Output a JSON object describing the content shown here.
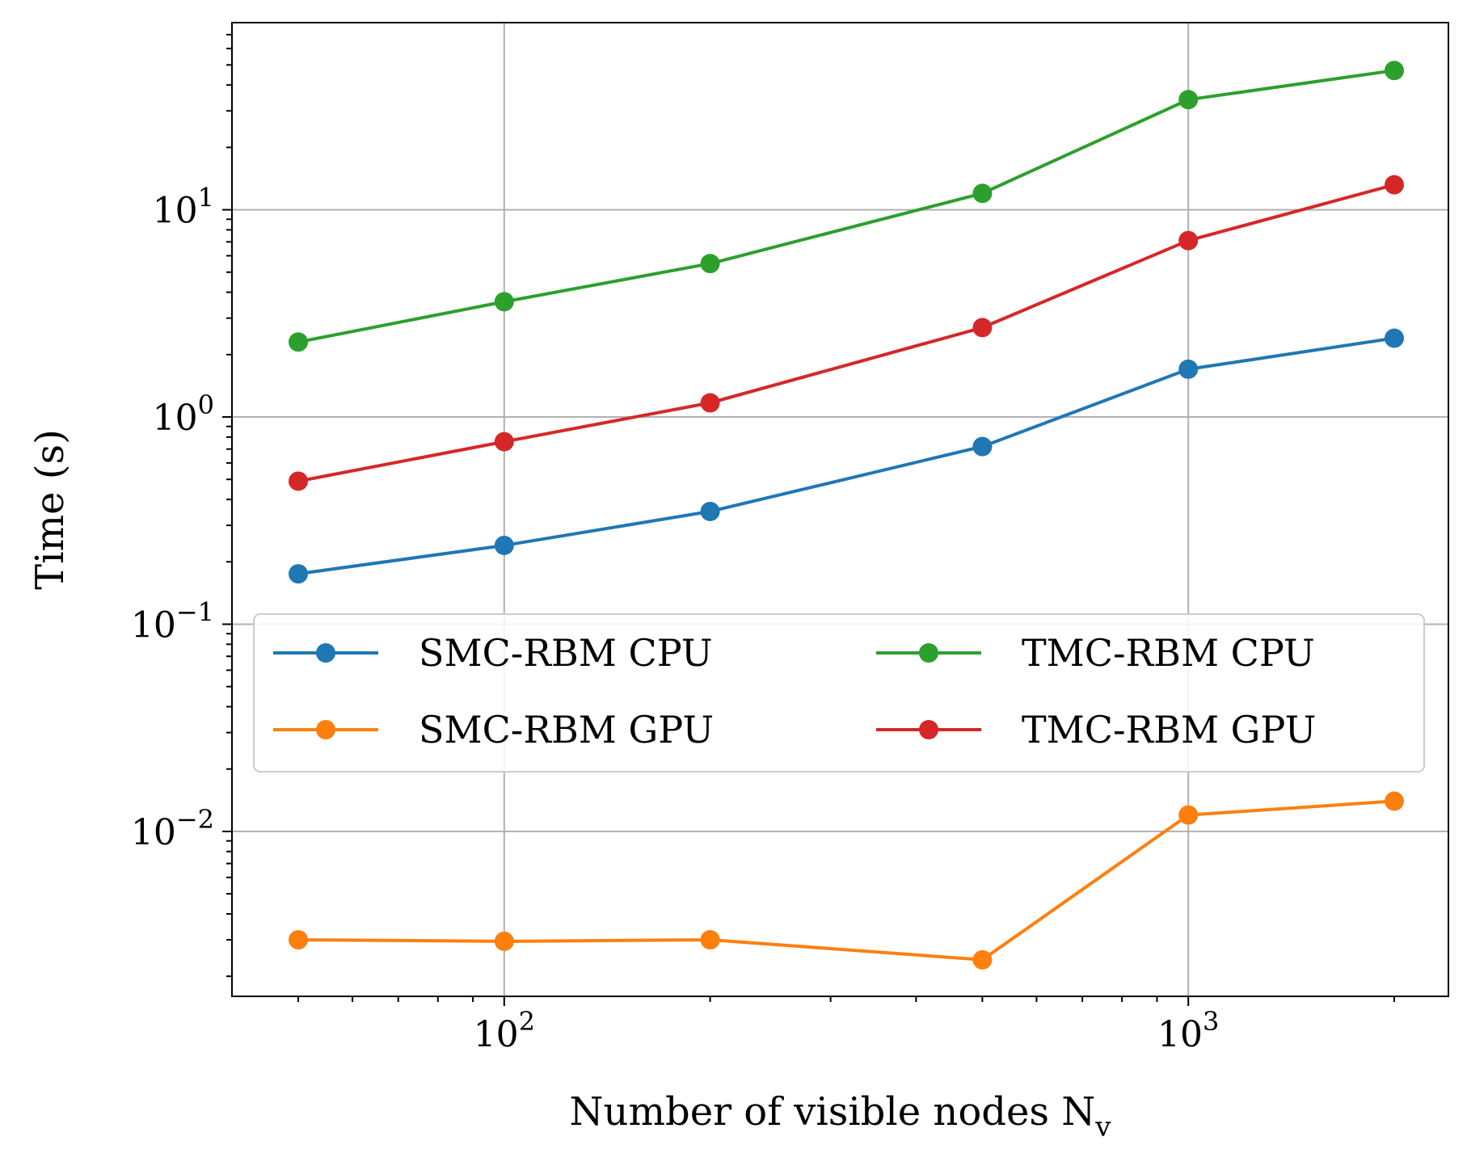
{
  "chart_data": {
    "type": "line",
    "xscale": "log",
    "yscale": "log",
    "xlim": [
      40,
      2400
    ],
    "ylim": [
      0.0016,
      80
    ],
    "xlabel": "Number of visible nodes N",
    "xlabel_subscript": "v",
    "ylabel": "Time (s)",
    "grid": true,
    "legend_placement": "center-right, two columns",
    "x_major_ticks": [
      {
        "value": 100,
        "base": "10",
        "exp": "2"
      },
      {
        "value": 1000,
        "base": "10",
        "exp": "3"
      }
    ],
    "y_major_ticks": [
      {
        "value": 0.01,
        "base": "10",
        "exp": "−2"
      },
      {
        "value": 0.1,
        "base": "10",
        "exp": "−1"
      },
      {
        "value": 1,
        "base": "10",
        "exp": "0"
      },
      {
        "value": 10,
        "base": "10",
        "exp": "1"
      }
    ],
    "x": [
      50,
      100,
      200,
      500,
      1000,
      2000
    ],
    "series": [
      {
        "name": "SMC-RBM CPU",
        "color": "#1f77b4",
        "values": [
          0.175,
          0.24,
          0.35,
          0.72,
          1.7,
          2.4
        ]
      },
      {
        "name": "SMC-RBM GPU",
        "color": "#ff7f0e",
        "values": [
          0.003,
          0.00295,
          0.003,
          0.0024,
          0.012,
          0.014
        ]
      },
      {
        "name": "TMC-RBM CPU",
        "color": "#2ca02c",
        "values": [
          2.3,
          3.6,
          5.5,
          12,
          34,
          47
        ]
      },
      {
        "name": "TMC-RBM GPU",
        "color": "#d62728",
        "values": [
          0.49,
          0.76,
          1.17,
          2.7,
          7.1,
          13.2
        ]
      }
    ]
  }
}
